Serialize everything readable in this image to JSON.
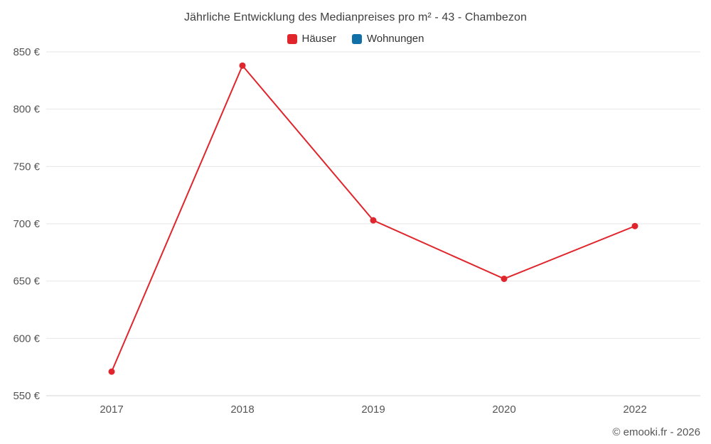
{
  "footer": {
    "text": "© emooki.fr - 2026"
  },
  "chart_data": {
    "type": "line",
    "title": "Jährliche Entwicklung des Medianpreises pro m² - 43 - Chambezon",
    "categories": [
      "2017",
      "2018",
      "2019",
      "2020",
      "2022"
    ],
    "series": [
      {
        "name": "Häuser",
        "color": "#e0262c",
        "values": [
          571,
          838,
          703,
          652,
          698
        ]
      },
      {
        "name": "Wohnungen",
        "color": "#1170a8",
        "values": []
      }
    ],
    "xlabel": "",
    "ylabel": "",
    "ylim": [
      550,
      850
    ],
    "ytick_step": 50,
    "ytick_suffix": " €",
    "grid": true,
    "legend_position": "top",
    "colors": {
      "gridline": "#e6e6e6",
      "axis_line": "#d4d4d4",
      "tick_label": "#555555"
    }
  }
}
